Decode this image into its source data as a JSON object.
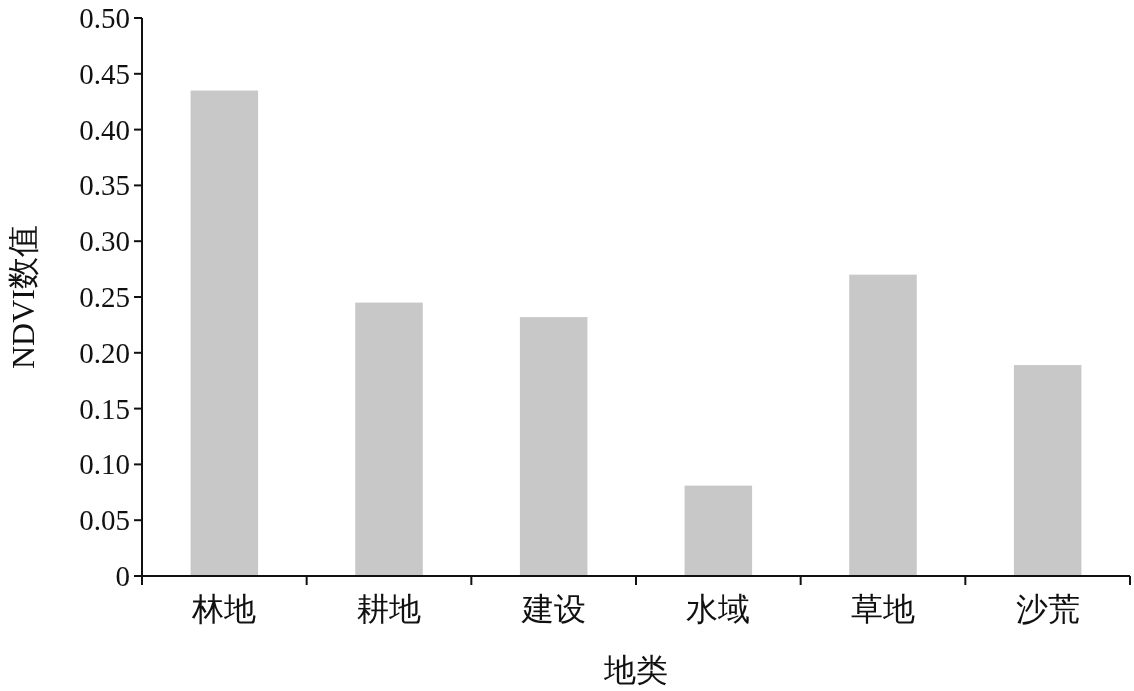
{
  "chart_data": {
    "type": "bar",
    "xlabel": "地类",
    "ylabel": "NDVI数值",
    "categories": [
      "林地",
      "耕地",
      "建设",
      "水域",
      "草地",
      "沙荒"
    ],
    "values": [
      0.435,
      0.245,
      0.232,
      0.081,
      0.27,
      0.189
    ],
    "color": "#c8c8c8",
    "ylim": [
      0,
      0.5
    ],
    "yticks": [
      0,
      0.05,
      {
        "value": 0.1,
        "label": "0.10"
      },
      0.15,
      {
        "value": 0.2,
        "label": "0.20"
      },
      0.25,
      {
        "value": 0.3,
        "label": "0.30"
      },
      0.35,
      {
        "value": 0.4,
        "label": "0.40"
      },
      0.45,
      {
        "value": 0.5,
        "label": "0.50"
      }
    ]
  }
}
